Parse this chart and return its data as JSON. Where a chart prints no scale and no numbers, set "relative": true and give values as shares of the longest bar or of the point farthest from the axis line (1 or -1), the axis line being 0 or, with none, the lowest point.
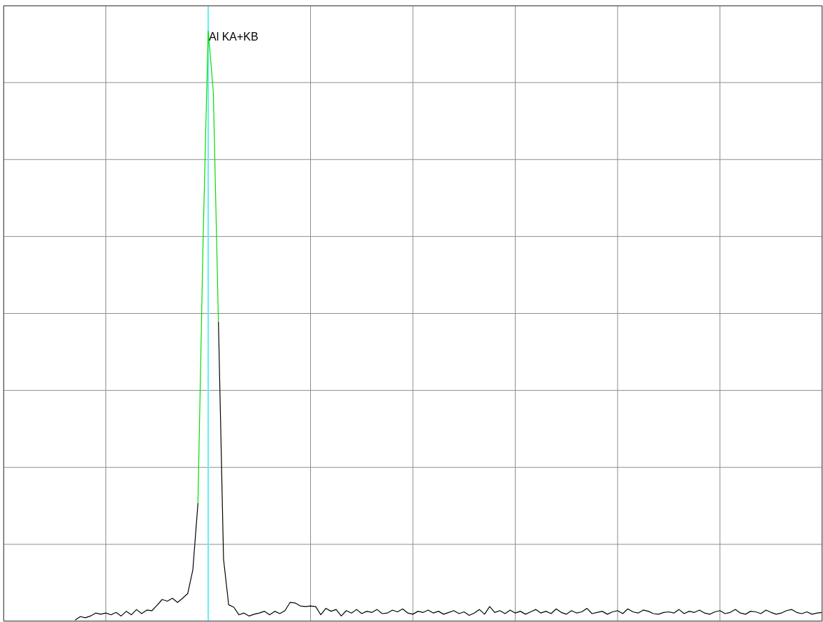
{
  "chart_data": {
    "type": "line",
    "relative": true,
    "grid": true,
    "legend": false,
    "marker": "none",
    "line_style": "solid",
    "categories": [
      null,
      null,
      null,
      null,
      null,
      null,
      null,
      null,
      null,
      null,
      null,
      null,
      null,
      null,
      null,
      null,
      null,
      null,
      null,
      null,
      null,
      null,
      null,
      null,
      null,
      null,
      null,
      null,
      null,
      null,
      null,
      null,
      null,
      null,
      null,
      null,
      null,
      null,
      null,
      null,
      null,
      null,
      null,
      null,
      null,
      null,
      null,
      null,
      null,
      null,
      null,
      null,
      null,
      null,
      null,
      null,
      null,
      null,
      null,
      null,
      null,
      null,
      null,
      null,
      null,
      null,
      null,
      null,
      null,
      null,
      null,
      null,
      null,
      null,
      null,
      null,
      null,
      null,
      null,
      null,
      null,
      null,
      null,
      null,
      null,
      null,
      null,
      null,
      null,
      null,
      null,
      null,
      null,
      null,
      null,
      null,
      null,
      null,
      null,
      null,
      null,
      null,
      null,
      null,
      null,
      null,
      null,
      null,
      null,
      null,
      null,
      null,
      null,
      null,
      null,
      null,
      null,
      null,
      null,
      null,
      null,
      null,
      null,
      null,
      null,
      null,
      null,
      null,
      null,
      null,
      null,
      null,
      null,
      null,
      null,
      null,
      null,
      null,
      null,
      null,
      null,
      null,
      null,
      null,
      null,
      null,
      null,
      null,
      null,
      null,
      null,
      null,
      null,
      null,
      null,
      null,
      null,
      null,
      null,
      null,
      null
    ],
    "series": [
      {
        "color": "#000000",
        "values": [
          null,
          null,
          null,
          null,
          null,
          null,
          null,
          null,
          null,
          null,
          null,
          null,
          null,
          null,
          0.002,
          0.008,
          0.006,
          0.009,
          0.014,
          0.012,
          0.014,
          0.011,
          0.015,
          0.009,
          0.017,
          0.011,
          0.02,
          0.013,
          0.019,
          0.018,
          0.027,
          0.037,
          0.034,
          0.039,
          0.032,
          0.039,
          0.047,
          0.087,
          0.2,
          null,
          null,
          null,
          0.507,
          0.105,
          0.028,
          0.024,
          0.011,
          0.014,
          0.009,
          0.012,
          0.014,
          0.017,
          0.011,
          0.017,
          0.013,
          0.018,
          0.032,
          0.031,
          0.026,
          0.025,
          0.026,
          0.025,
          0.011,
          0.022,
          0.017,
          0.02,
          0.009,
          0.018,
          0.014,
          0.02,
          0.013,
          0.017,
          0.015,
          0.02,
          0.013,
          0.014,
          0.019,
          0.016,
          0.021,
          0.014,
          0.012,
          0.017,
          0.015,
          0.019,
          0.014,
          0.017,
          0.012,
          0.015,
          0.018,
          0.013,
          0.016,
          0.01,
          0.014,
          0.02,
          0.012,
          0.025,
          0.015,
          0.018,
          0.013,
          0.019,
          0.014,
          0.017,
          0.012,
          0.016,
          0.02,
          0.014,
          0.017,
          0.013,
          0.021,
          0.015,
          0.012,
          0.018,
          0.014,
          0.016,
          0.022,
          0.013,
          0.015,
          0.017,
          0.012,
          0.016,
          0.018,
          0.013,
          0.021,
          0.016,
          0.014,
          0.019,
          0.017,
          0.013,
          0.012,
          0.015,
          0.016,
          0.014,
          0.02,
          0.013,
          0.017,
          0.015,
          0.019,
          0.014,
          0.012,
          0.016,
          0.018,
          0.013,
          0.015,
          0.02,
          0.014,
          0.012,
          0.017,
          0.016,
          0.013,
          0.019,
          0.015,
          0.012,
          0.014,
          0.018,
          0.02,
          0.015,
          0.013,
          0.016,
          0.012,
          0.014,
          0.015
        ]
      },
      {
        "color": "#00dd00",
        "values": [
          null,
          null,
          null,
          null,
          null,
          null,
          null,
          null,
          null,
          null,
          null,
          null,
          null,
          null,
          null,
          null,
          null,
          null,
          null,
          null,
          null,
          null,
          null,
          null,
          null,
          null,
          null,
          null,
          null,
          null,
          null,
          null,
          null,
          null,
          null,
          null,
          null,
          null,
          0.2,
          0.645,
          1.0,
          0.897,
          0.507,
          null,
          null,
          null,
          null,
          null,
          null,
          null,
          null,
          null,
          null,
          null,
          null,
          null,
          null,
          null,
          null,
          null,
          null,
          null,
          null,
          null,
          null,
          null,
          null,
          null,
          null,
          null,
          null,
          null,
          null,
          null,
          null,
          null,
          null,
          null,
          null,
          null,
          null,
          null,
          null,
          null,
          null,
          null,
          null,
          null,
          null,
          null,
          null,
          null,
          null,
          null,
          null,
          null,
          null,
          null,
          null,
          null,
          null,
          null,
          null,
          null,
          null,
          null,
          null,
          null,
          null,
          null,
          null,
          null,
          null,
          null,
          null,
          null,
          null,
          null,
          null,
          null,
          null,
          null,
          null,
          null,
          null,
          null,
          null,
          null,
          null,
          null,
          null,
          null,
          null,
          null,
          null,
          null,
          null,
          null,
          null,
          null,
          null,
          null,
          null,
          null,
          null,
          null,
          null,
          null,
          null,
          null,
          null,
          null,
          null,
          null,
          null,
          null,
          null,
          null,
          null,
          null,
          null
        ]
      }
    ],
    "ref_lines": [
      {
        "axis": "x",
        "color": "#66eef5"
      }
    ],
    "annotations": [
      "Al KA+KB"
    ]
  }
}
